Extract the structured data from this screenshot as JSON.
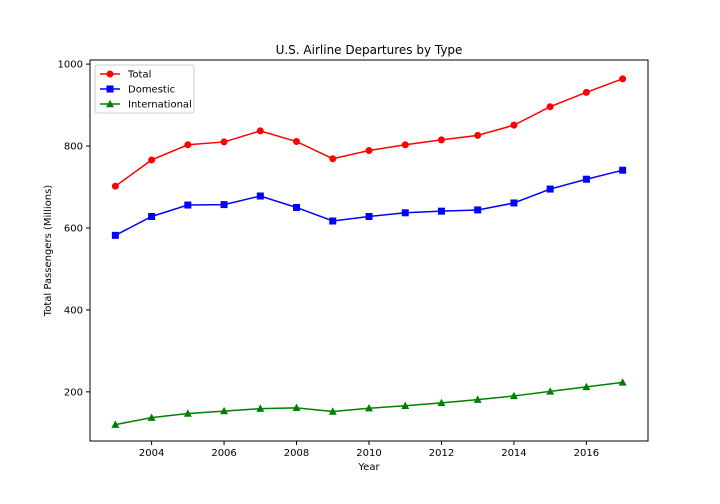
{
  "chart_data": {
    "type": "line",
    "title": "U.S. Airline Departures by Type",
    "xlabel": "Year",
    "ylabel": "Total Passengers (Millions)",
    "xlim": [
      2002.3,
      2017.7
    ],
    "ylim": [
      80,
      1010
    ],
    "xticks": [
      2004,
      2006,
      2008,
      2010,
      2012,
      2014,
      2016
    ],
    "yticks": [
      200,
      400,
      600,
      800,
      1000
    ],
    "grid": false,
    "legend_position": "top-left",
    "x": [
      2003,
      2004,
      2005,
      2006,
      2007,
      2008,
      2009,
      2010,
      2011,
      2012,
      2013,
      2014,
      2015,
      2016,
      2017
    ],
    "series": [
      {
        "name": "Total",
        "color": "#ff0000",
        "marker": "circle",
        "values": [
          702,
          766,
          803,
          810,
          837,
          811,
          769,
          789,
          803,
          815,
          826,
          851,
          896,
          931,
          964
        ]
      },
      {
        "name": "Domestic",
        "color": "#0000ff",
        "marker": "square",
        "values": [
          582,
          628,
          656,
          657,
          678,
          650,
          617,
          628,
          637,
          641,
          644,
          661,
          695,
          719,
          741
        ]
      },
      {
        "name": "International",
        "color": "#008000",
        "marker": "triangle",
        "values": [
          120,
          137,
          147,
          153,
          159,
          161,
          152,
          160,
          166,
          173,
          181,
          190,
          201,
          212,
          223
        ]
      }
    ]
  }
}
